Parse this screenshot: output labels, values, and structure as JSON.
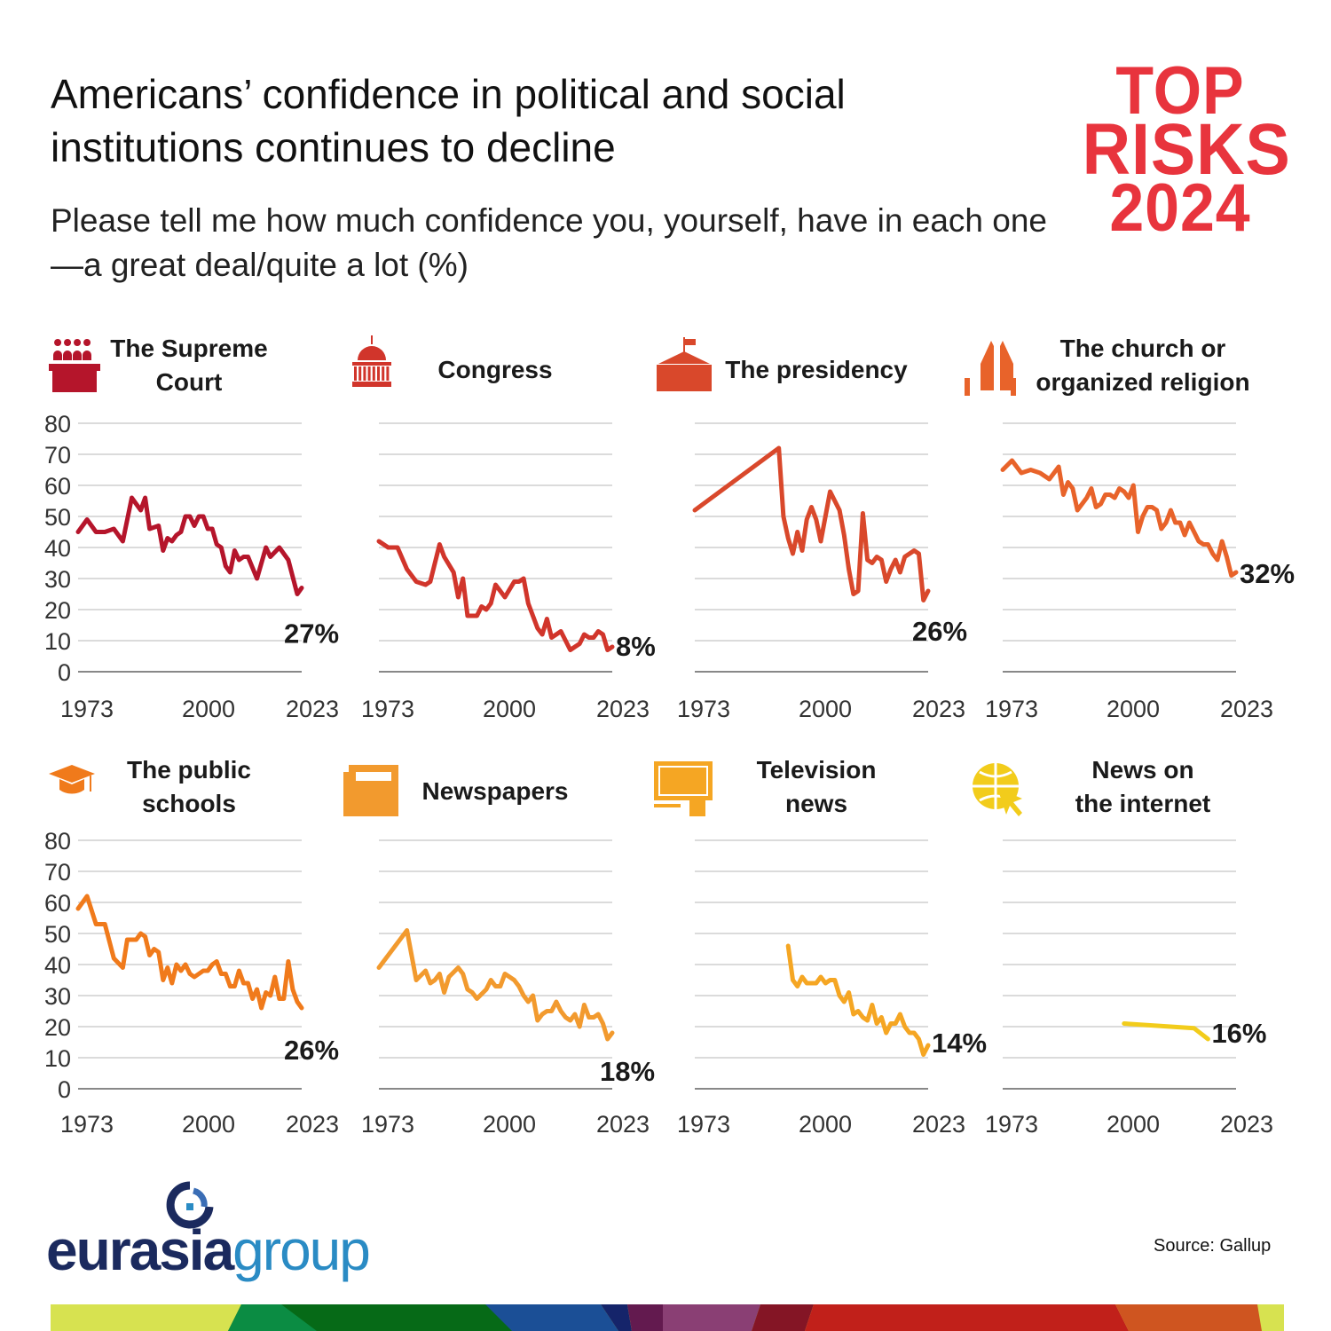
{
  "header": {
    "title": "Americans’ confidence in political and social institutions continues to decline",
    "subtitle": "Please tell me how much confidence you, yourself, have in each one—a great deal/quite a lot (%)"
  },
  "brand": {
    "line1": "TOP",
    "line2": "RISKS",
    "line3": "2024",
    "color": "#e8343d"
  },
  "footer": {
    "logo_part1": "eurasia",
    "logo_part2": "group",
    "source": "Source: Gallup"
  },
  "chart_data": [
    {
      "type": "line",
      "title_lines": [
        "The Supreme",
        "Court"
      ],
      "icon": "courthouse-icon",
      "color": "#b5152b",
      "end_label": "27%",
      "ylim": [
        0,
        80
      ],
      "yticks": [
        "0",
        "10",
        "20",
        "30",
        "40",
        "50",
        "60",
        "70",
        "80"
      ],
      "xticks": [
        "1973",
        "2000",
        "2023"
      ],
      "xlim": [
        1973,
        2023
      ],
      "points": [
        [
          1973,
          45
        ],
        [
          1975,
          49
        ],
        [
          1977,
          45
        ],
        [
          1979,
          45
        ],
        [
          1981,
          46
        ],
        [
          1983,
          42
        ],
        [
          1985,
          56
        ],
        [
          1987,
          52
        ],
        [
          1988,
          56
        ],
        [
          1989,
          46
        ],
        [
          1991,
          47
        ],
        [
          1992,
          39
        ],
        [
          1993,
          43
        ],
        [
          1994,
          42
        ],
        [
          1995,
          44
        ],
        [
          1996,
          45
        ],
        [
          1997,
          50
        ],
        [
          1998,
          50
        ],
        [
          1999,
          47
        ],
        [
          2000,
          50
        ],
        [
          2001,
          50
        ],
        [
          2002,
          46
        ],
        [
          2003,
          46
        ],
        [
          2004,
          41
        ],
        [
          2005,
          40
        ],
        [
          2006,
          34
        ],
        [
          2007,
          32
        ],
        [
          2008,
          39
        ],
        [
          2009,
          36
        ],
        [
          2010,
          37
        ],
        [
          2011,
          37
        ],
        [
          2013,
          30
        ],
        [
          2015,
          40
        ],
        [
          2016,
          37
        ],
        [
          2018,
          40
        ],
        [
          2020,
          36
        ],
        [
          2022,
          25
        ],
        [
          2023,
          27
        ]
      ]
    },
    {
      "type": "line",
      "title_lines": [
        "Congress"
      ],
      "icon": "capitol-dome-icon",
      "color": "#d1352b",
      "end_label": "8%",
      "ylim": [
        0,
        80
      ],
      "xticks": [
        "1973",
        "2000",
        "2023"
      ],
      "xlim": [
        1973,
        2023
      ],
      "points": [
        [
          1973,
          42
        ],
        [
          1975,
          40
        ],
        [
          1977,
          40
        ],
        [
          1979,
          33
        ],
        [
          1981,
          29
        ],
        [
          1983,
          28
        ],
        [
          1984,
          29
        ],
        [
          1986,
          41
        ],
        [
          1987,
          37
        ],
        [
          1989,
          32
        ],
        [
          1990,
          24
        ],
        [
          1991,
          30
        ],
        [
          1992,
          18
        ],
        [
          1994,
          18
        ],
        [
          1995,
          21
        ],
        [
          1996,
          20
        ],
        [
          1997,
          22
        ],
        [
          1998,
          28
        ],
        [
          2000,
          24
        ],
        [
          2002,
          29
        ],
        [
          2003,
          29
        ],
        [
          2004,
          30
        ],
        [
          2005,
          22
        ],
        [
          2007,
          14
        ],
        [
          2008,
          12
        ],
        [
          2009,
          17
        ],
        [
          2010,
          11
        ],
        [
          2011,
          12
        ],
        [
          2012,
          13
        ],
        [
          2014,
          7
        ],
        [
          2015,
          8
        ],
        [
          2016,
          9
        ],
        [
          2017,
          12
        ],
        [
          2018,
          11
        ],
        [
          2019,
          11
        ],
        [
          2020,
          13
        ],
        [
          2021,
          12
        ],
        [
          2022,
          7
        ],
        [
          2023,
          8
        ]
      ]
    },
    {
      "type": "line",
      "title_lines": [
        "The presidency"
      ],
      "icon": "white-house-icon",
      "color": "#d9482b",
      "end_label": "26%",
      "ylim": [
        0,
        80
      ],
      "xticks": [
        "1973",
        "2000",
        "2023"
      ],
      "xlim": [
        1973,
        2023
      ],
      "points": [
        [
          1973,
          52
        ],
        [
          1991,
          72
        ],
        [
          1992,
          50
        ],
        [
          1993,
          43
        ],
        [
          1994,
          38
        ],
        [
          1995,
          45
        ],
        [
          1996,
          39
        ],
        [
          1997,
          49
        ],
        [
          1998,
          53
        ],
        [
          1999,
          49
        ],
        [
          2000,
          42
        ],
        [
          2002,
          58
        ],
        [
          2004,
          52
        ],
        [
          2005,
          44
        ],
        [
          2006,
          33
        ],
        [
          2007,
          25
        ],
        [
          2008,
          26
        ],
        [
          2009,
          51
        ],
        [
          2010,
          36
        ],
        [
          2011,
          35
        ],
        [
          2012,
          37
        ],
        [
          2013,
          36
        ],
        [
          2014,
          29
        ],
        [
          2015,
          33
        ],
        [
          2016,
          36
        ],
        [
          2017,
          32
        ],
        [
          2018,
          37
        ],
        [
          2019,
          38
        ],
        [
          2020,
          39
        ],
        [
          2021,
          38
        ],
        [
          2022,
          23
        ],
        [
          2023,
          26
        ]
      ]
    },
    {
      "type": "line",
      "title_lines": [
        "The church or",
        "organized religion"
      ],
      "icon": "praying-hands-icon",
      "color": "#e8632a",
      "end_label": "32%",
      "ylim": [
        0,
        80
      ],
      "xticks": [
        "1973",
        "2000",
        "2023"
      ],
      "xlim": [
        1973,
        2023
      ],
      "points": [
        [
          1973,
          65
        ],
        [
          1975,
          68
        ],
        [
          1977,
          64
        ],
        [
          1979,
          65
        ],
        [
          1981,
          64
        ],
        [
          1983,
          62
        ],
        [
          1985,
          66
        ],
        [
          1986,
          57
        ],
        [
          1987,
          61
        ],
        [
          1988,
          59
        ],
        [
          1989,
          52
        ],
        [
          1991,
          56
        ],
        [
          1992,
          59
        ],
        [
          1993,
          53
        ],
        [
          1994,
          54
        ],
        [
          1995,
          57
        ],
        [
          1996,
          57
        ],
        [
          1997,
          56
        ],
        [
          1998,
          59
        ],
        [
          1999,
          58
        ],
        [
          2000,
          56
        ],
        [
          2001,
          60
        ],
        [
          2002,
          45
        ],
        [
          2003,
          50
        ],
        [
          2004,
          53
        ],
        [
          2005,
          53
        ],
        [
          2006,
          52
        ],
        [
          2007,
          46
        ],
        [
          2008,
          48
        ],
        [
          2009,
          52
        ],
        [
          2010,
          48
        ],
        [
          2011,
          48
        ],
        [
          2012,
          44
        ],
        [
          2013,
          48
        ],
        [
          2014,
          45
        ],
        [
          2015,
          42
        ],
        [
          2016,
          41
        ],
        [
          2017,
          41
        ],
        [
          2018,
          38
        ],
        [
          2019,
          36
        ],
        [
          2020,
          42
        ],
        [
          2021,
          37
        ],
        [
          2022,
          31
        ],
        [
          2023,
          32
        ]
      ]
    },
    {
      "type": "line",
      "title_lines": [
        "The public",
        "schools"
      ],
      "icon": "graduation-cap-icon",
      "color": "#f07a1b",
      "end_label": "26%",
      "ylim": [
        0,
        80
      ],
      "yticks": [
        "0",
        "10",
        "20",
        "30",
        "40",
        "50",
        "60",
        "70",
        "80"
      ],
      "xticks": [
        "1973",
        "2000",
        "2023"
      ],
      "xlim": [
        1973,
        2023
      ],
      "points": [
        [
          1973,
          58
        ],
        [
          1975,
          62
        ],
        [
          1977,
          53
        ],
        [
          1979,
          53
        ],
        [
          1981,
          42
        ],
        [
          1983,
          39
        ],
        [
          1984,
          48
        ],
        [
          1986,
          48
        ],
        [
          1987,
          50
        ],
        [
          1988,
          49
        ],
        [
          1989,
          43
        ],
        [
          1990,
          45
        ],
        [
          1991,
          44
        ],
        [
          1992,
          35
        ],
        [
          1993,
          39
        ],
        [
          1994,
          34
        ],
        [
          1995,
          40
        ],
        [
          1996,
          38
        ],
        [
          1997,
          40
        ],
        [
          1998,
          37
        ],
        [
          1999,
          36
        ],
        [
          2000,
          37
        ],
        [
          2001,
          38
        ],
        [
          2002,
          38
        ],
        [
          2003,
          40
        ],
        [
          2004,
          41
        ],
        [
          2005,
          37
        ],
        [
          2006,
          37
        ],
        [
          2007,
          33
        ],
        [
          2008,
          33
        ],
        [
          2009,
          38
        ],
        [
          2010,
          34
        ],
        [
          2011,
          34
        ],
        [
          2012,
          29
        ],
        [
          2013,
          32
        ],
        [
          2014,
          26
        ],
        [
          2015,
          31
        ],
        [
          2016,
          30
        ],
        [
          2017,
          36
        ],
        [
          2018,
          29
        ],
        [
          2019,
          29
        ],
        [
          2020,
          41
        ],
        [
          2021,
          32
        ],
        [
          2022,
          28
        ],
        [
          2023,
          26
        ]
      ]
    },
    {
      "type": "line",
      "title_lines": [
        "Newspapers"
      ],
      "icon": "newspaper-icon",
      "color": "#f29a2e",
      "end_label": "18%",
      "ylim": [
        0,
        80
      ],
      "xticks": [
        "1973",
        "2000",
        "2023"
      ],
      "xlim": [
        1973,
        2023
      ],
      "points": [
        [
          1973,
          39
        ],
        [
          1979,
          51
        ],
        [
          1981,
          35
        ],
        [
          1983,
          38
        ],
        [
          1984,
          34
        ],
        [
          1985,
          35
        ],
        [
          1986,
          37
        ],
        [
          1987,
          31
        ],
        [
          1988,
          36
        ],
        [
          1990,
          39
        ],
        [
          1991,
          37
        ],
        [
          1992,
          32
        ],
        [
          1993,
          31
        ],
        [
          1994,
          29
        ],
        [
          1996,
          32
        ],
        [
          1997,
          35
        ],
        [
          1998,
          33
        ],
        [
          1999,
          33
        ],
        [
          2000,
          37
        ],
        [
          2001,
          36
        ],
        [
          2002,
          35
        ],
        [
          2003,
          33
        ],
        [
          2004,
          30
        ],
        [
          2005,
          28
        ],
        [
          2006,
          30
        ],
        [
          2007,
          22
        ],
        [
          2008,
          24
        ],
        [
          2009,
          25
        ],
        [
          2010,
          25
        ],
        [
          2011,
          28
        ],
        [
          2012,
          25
        ],
        [
          2013,
          23
        ],
        [
          2014,
          22
        ],
        [
          2015,
          24
        ],
        [
          2016,
          20
        ],
        [
          2017,
          27
        ],
        [
          2018,
          23
        ],
        [
          2019,
          23
        ],
        [
          2020,
          24
        ],
        [
          2021,
          21
        ],
        [
          2022,
          16
        ],
        [
          2023,
          18
        ]
      ]
    },
    {
      "type": "line",
      "title_lines": [
        "Television",
        "news"
      ],
      "icon": "television-icon",
      "color": "#f5a623",
      "end_label": "14%",
      "ylim": [
        0,
        80
      ],
      "xticks": [
        "1973",
        "2000",
        "2023"
      ],
      "xlim": [
        1973,
        2023
      ],
      "points": [
        [
          1993,
          46
        ],
        [
          1994,
          35
        ],
        [
          1995,
          33
        ],
        [
          1996,
          36
        ],
        [
          1997,
          34
        ],
        [
          1998,
          34
        ],
        [
          1999,
          34
        ],
        [
          2000,
          36
        ],
        [
          2001,
          34
        ],
        [
          2002,
          35
        ],
        [
          2003,
          35
        ],
        [
          2004,
          30
        ],
        [
          2005,
          28
        ],
        [
          2006,
          31
        ],
        [
          2007,
          24
        ],
        [
          2008,
          25
        ],
        [
          2009,
          23
        ],
        [
          2010,
          22
        ],
        [
          2011,
          27
        ],
        [
          2012,
          21
        ],
        [
          2013,
          23
        ],
        [
          2014,
          18
        ],
        [
          2015,
          21
        ],
        [
          2016,
          21
        ],
        [
          2017,
          24
        ],
        [
          2018,
          20
        ],
        [
          2019,
          18
        ],
        [
          2020,
          18
        ],
        [
          2021,
          16
        ],
        [
          2022,
          11
        ],
        [
          2023,
          14
        ]
      ]
    },
    {
      "type": "line",
      "title_lines": [
        "News on",
        "the internet"
      ],
      "icon": "globe-cursor-icon",
      "color": "#f2cc1b",
      "end_label": "16%",
      "ylim": [
        0,
        80
      ],
      "xticks": [
        "1973",
        "2000",
        "2023"
      ],
      "xlim": [
        1973,
        2023
      ],
      "points": [
        [
          1999,
          21
        ],
        [
          2014,
          19.5
        ],
        [
          2017,
          16
        ]
      ]
    }
  ]
}
